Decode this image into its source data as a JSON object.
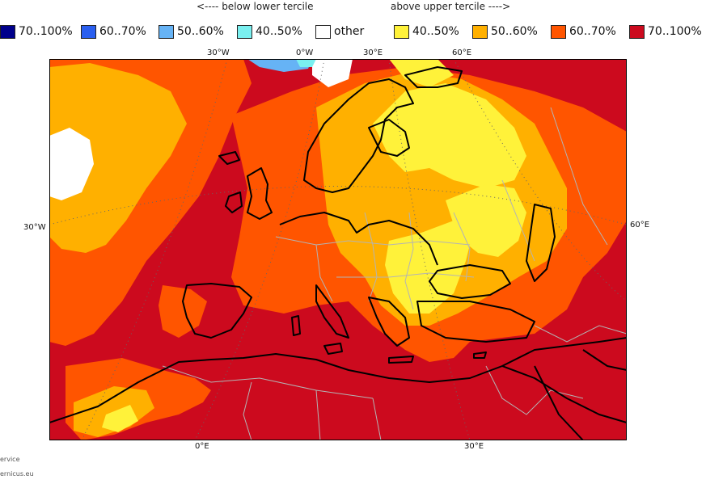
{
  "header": {
    "below_label": "<---- below lower tercile",
    "above_label": "above upper tercile ---->"
  },
  "legend": [
    {
      "label": "70..100%",
      "color": "#00008b"
    },
    {
      "label": "60..70%",
      "color": "#2a5ff0"
    },
    {
      "label": "50..60%",
      "color": "#66b3f5"
    },
    {
      "label": "40..50%",
      "color": "#7af0f0"
    },
    {
      "label": "other",
      "color": "#ffffff"
    },
    {
      "label": "40..50%",
      "color": "#fff23a"
    },
    {
      "label": "50..60%",
      "color": "#ffb000"
    },
    {
      "label": "60..70%",
      "color": "#ff5500"
    },
    {
      "label": "70..100%",
      "color": "#cc0a1e"
    }
  ],
  "top_axis": [
    "30°W",
    "0°W",
    "30°E",
    "60°E"
  ],
  "left_axis": [
    "30°W"
  ],
  "right_axis": [
    "60°E"
  ],
  "bottom_axis": [
    "0°E",
    "30°E"
  ],
  "footer": {
    "line1": "ervice",
    "line2": "ernicus.eu"
  },
  "colors": {
    "base": "#cc0a1e",
    "c60_70": "#ff5500",
    "c50_60": "#ffb000",
    "c40_50": "#fff23a",
    "other": "#ffffff",
    "cold_light": "#66b3f5",
    "cold_cyan": "#7af0f0",
    "coast": "#000000",
    "border": "#b4b4b4",
    "grid": "#666666"
  }
}
